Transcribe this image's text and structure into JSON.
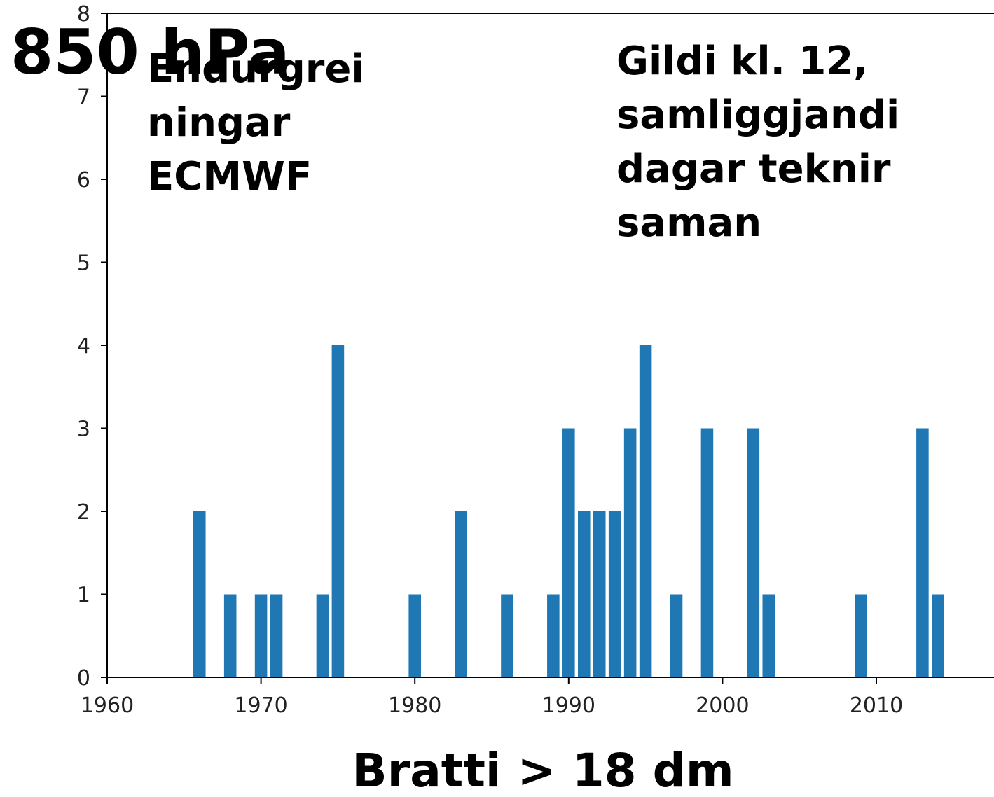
{
  "chart_data": {
    "type": "bar",
    "title": "850 hPa",
    "xlabel": "Bratti > 18 dm",
    "annotations": [
      [
        "Endurgrei",
        "ningar",
        "ECMWF"
      ],
      [
        "Gildi kl. 12,",
        "samliggjandi",
        "dagar teknir",
        "saman"
      ]
    ],
    "x": [
      1966,
      1968,
      1970,
      1971,
      1974,
      1975,
      1980,
      1983,
      1986,
      1989,
      1990,
      1991,
      1992,
      1993,
      1994,
      1995,
      1997,
      1999,
      2002,
      2003,
      2009,
      2013,
      2014
    ],
    "values": [
      2,
      1,
      1,
      1,
      1,
      4,
      1,
      2,
      1,
      1,
      3,
      2,
      2,
      2,
      3,
      4,
      1,
      3,
      3,
      1,
      1,
      3,
      1
    ],
    "color": "#1f77b4",
    "xlim": [
      1960,
      2017.65
    ],
    "xticks": [
      1960,
      1970,
      1980,
      1990,
      2000,
      2010
    ],
    "ylim": [
      0,
      8
    ],
    "yticks": [
      0,
      1,
      2,
      3,
      4,
      5,
      6,
      7,
      8
    ]
  }
}
